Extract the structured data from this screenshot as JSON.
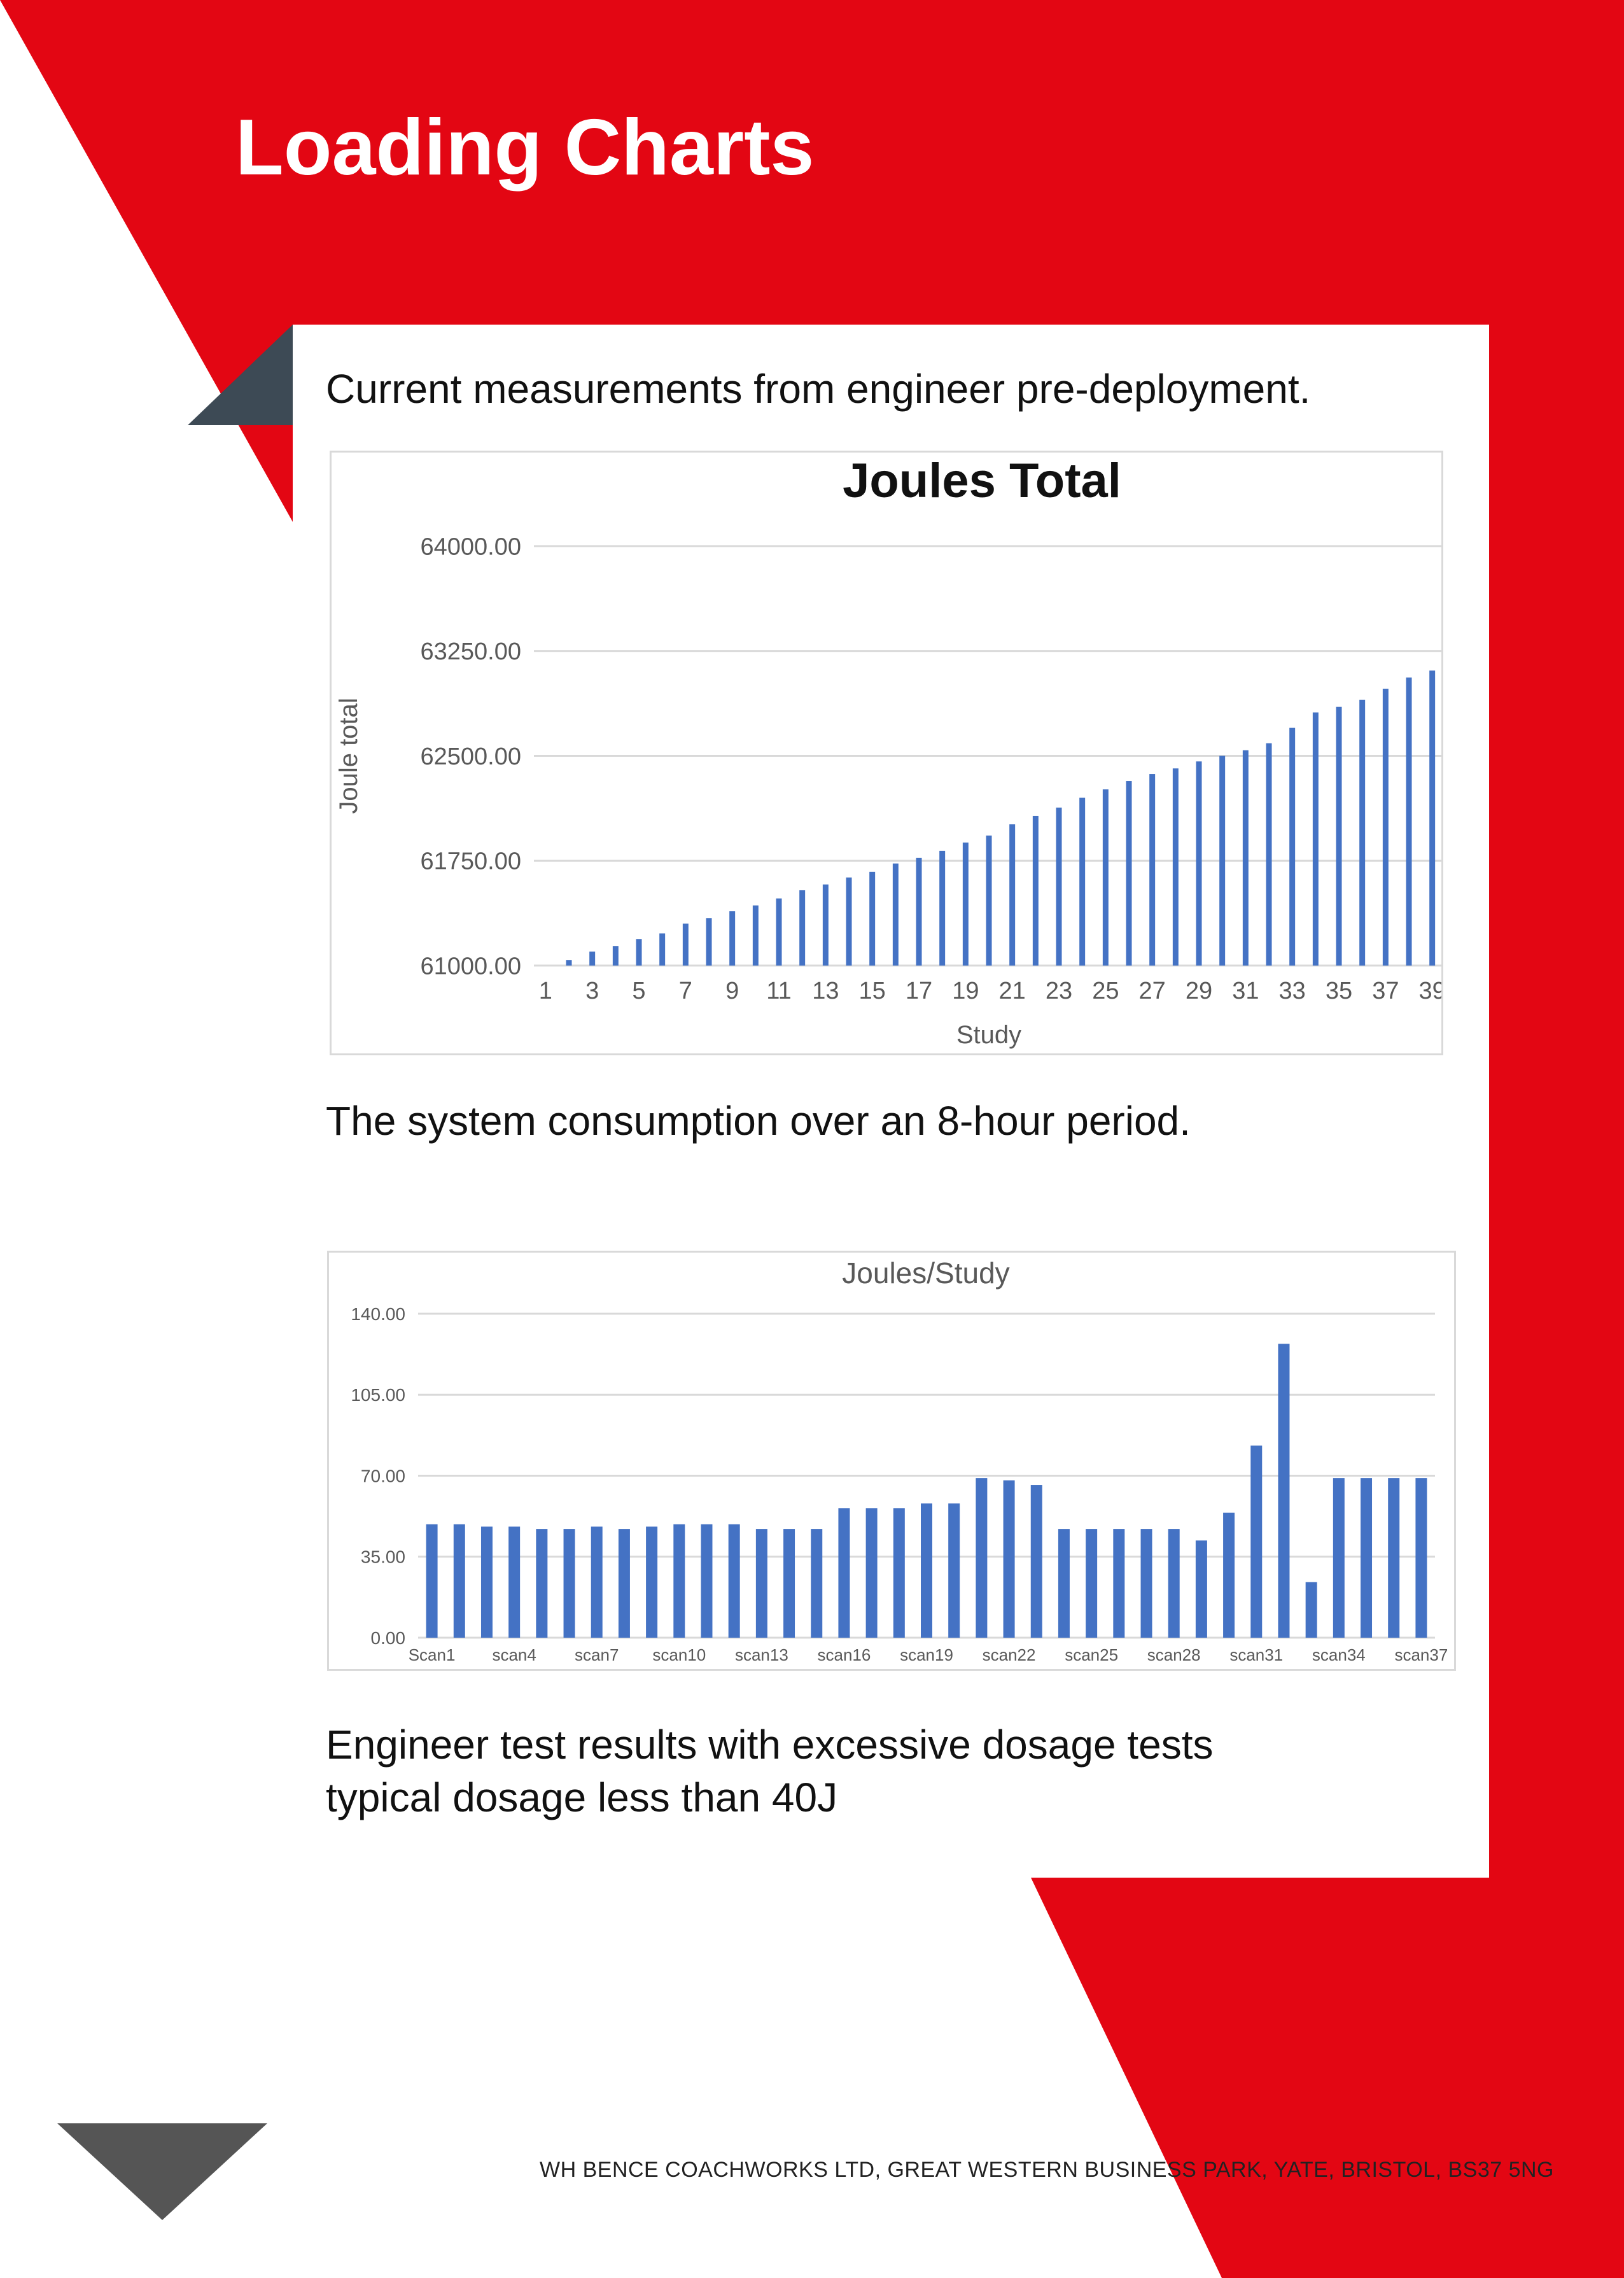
{
  "page": {
    "title": "Loading Charts",
    "caption_1": "Current measurements from engineer pre-deployment.",
    "caption_2": "The system consumption over an 8-hour period.",
    "caption_3_line1": "Engineer test results with excessive dosage tests",
    "caption_3_line2": "typical dosage less than 40J",
    "footer": "WH BENCE COACHWORKS LTD, GREAT WESTERN BUSINESS PARK, YATE, BRISTOL, BS37 5NG",
    "colors": {
      "brand_red": "#e30613",
      "dark_slate": "#3d4a55",
      "dark_gray": "#555555",
      "bar_blue": "#4472c4"
    }
  },
  "chart_data": [
    {
      "type": "bar",
      "title": "Joules Total",
      "xlabel": "Study",
      "ylabel": "Joule total",
      "ylim": [
        61000,
        64000
      ],
      "y_ticks": [
        "61000.00",
        "61750.00",
        "62500.00",
        "63250.00",
        "64000.00"
      ],
      "x_tick_labels": [
        "1",
        "3",
        "5",
        "7",
        "9",
        "11",
        "13",
        "15",
        "17",
        "19",
        "21",
        "23",
        "25",
        "27",
        "29",
        "31",
        "33",
        "35",
        "37",
        "39"
      ],
      "categories": [
        1,
        2,
        3,
        4,
        5,
        6,
        7,
        8,
        9,
        10,
        11,
        12,
        13,
        14,
        15,
        16,
        17,
        18,
        19,
        20,
        21,
        22,
        23,
        24,
        25,
        26,
        27,
        28,
        29,
        30,
        31,
        32,
        33,
        34,
        35,
        36,
        37,
        38,
        39
      ],
      "values": [
        61000,
        61040,
        61100,
        61140,
        61190,
        61230,
        61300,
        61340,
        61390,
        61430,
        61480,
        61540,
        61580,
        61630,
        61670,
        61730,
        61770,
        61820,
        61880,
        61930,
        62010,
        62070,
        62130,
        62200,
        62260,
        62320,
        62370,
        62410,
        62460,
        62500,
        62540,
        62590,
        62700,
        62810,
        62850,
        62900,
        62980,
        63060,
        63110
      ],
      "grid": true,
      "legend": "none"
    },
    {
      "type": "bar",
      "title": "Joules/Study",
      "xlabel": "",
      "ylabel": "",
      "ylim": [
        0,
        140
      ],
      "y_ticks": [
        "0.00",
        "35.00",
        "70.00",
        "105.00",
        "140.00"
      ],
      "x_tick_labels": [
        "Scan1",
        "scan4",
        "scan7",
        "scan10",
        "scan13",
        "scan16",
        "scan19",
        "scan22",
        "scan25",
        "scan28",
        "scan31",
        "scan34",
        "scan37"
      ],
      "categories": [
        "Scan1",
        "scan2",
        "scan3",
        "scan4",
        "scan5",
        "scan6",
        "scan7",
        "scan8",
        "scan9",
        "scan10",
        "scan11",
        "scan12",
        "scan13",
        "scan14",
        "scan15",
        "scan16",
        "scan17",
        "scan18",
        "scan19",
        "scan20",
        "scan21",
        "scan22",
        "scan23",
        "scan24",
        "scan25",
        "scan26",
        "scan27",
        "scan28",
        "scan29",
        "scan30",
        "scan31",
        "scan32",
        "scan33",
        "scan34",
        "scan35",
        "scan36",
        "scan37"
      ],
      "values": [
        49,
        49,
        48,
        48,
        47,
        47,
        48,
        47,
        48,
        49,
        49,
        49,
        47,
        47,
        47,
        56,
        56,
        56,
        58,
        58,
        69,
        68,
        66,
        47,
        47,
        47,
        47,
        47,
        42,
        54,
        83,
        127,
        24,
        69,
        69,
        69,
        69
      ],
      "grid": true,
      "legend": "none"
    }
  ]
}
